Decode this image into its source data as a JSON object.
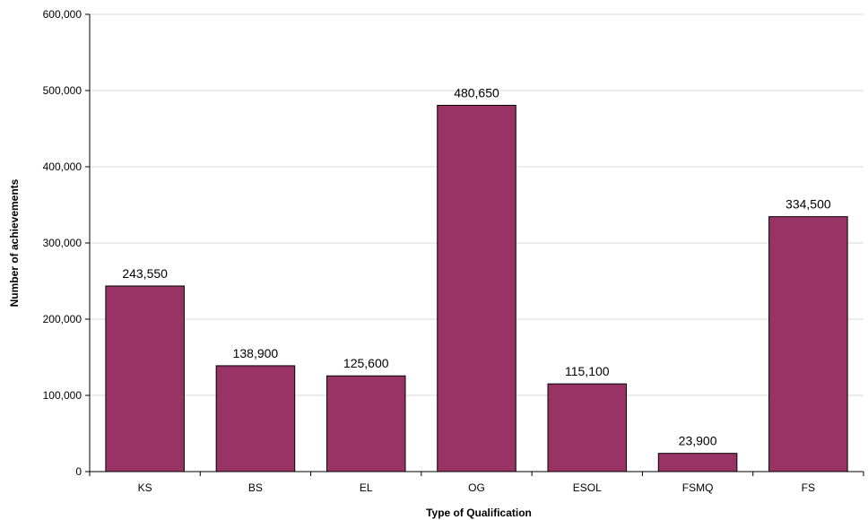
{
  "chart_data": {
    "type": "bar",
    "title": "",
    "xlabel": "Type of Qualification",
    "ylabel": "Number of achievements",
    "categories": [
      "KS",
      "BS",
      "EL",
      "OG",
      "ESOL",
      "FSMQ",
      "FS"
    ],
    "values": [
      243550,
      138900,
      125600,
      480650,
      115100,
      23900,
      334500
    ],
    "data_labels": [
      "243,550",
      "138,900",
      "125,600",
      "480,650",
      "115,100",
      "23,900",
      "334,500"
    ],
    "ylim": [
      0,
      600000
    ],
    "yticks": [
      0,
      100000,
      200000,
      300000,
      400000,
      500000,
      600000
    ],
    "ytick_labels": [
      "0",
      "100,000",
      "200,000",
      "300,000",
      "400,000",
      "500,000",
      "600,000"
    ],
    "grid": true,
    "legend": "none",
    "colors": {
      "bar": "#993366",
      "grid": "#d9d9d9",
      "axis": "#000000"
    }
  }
}
